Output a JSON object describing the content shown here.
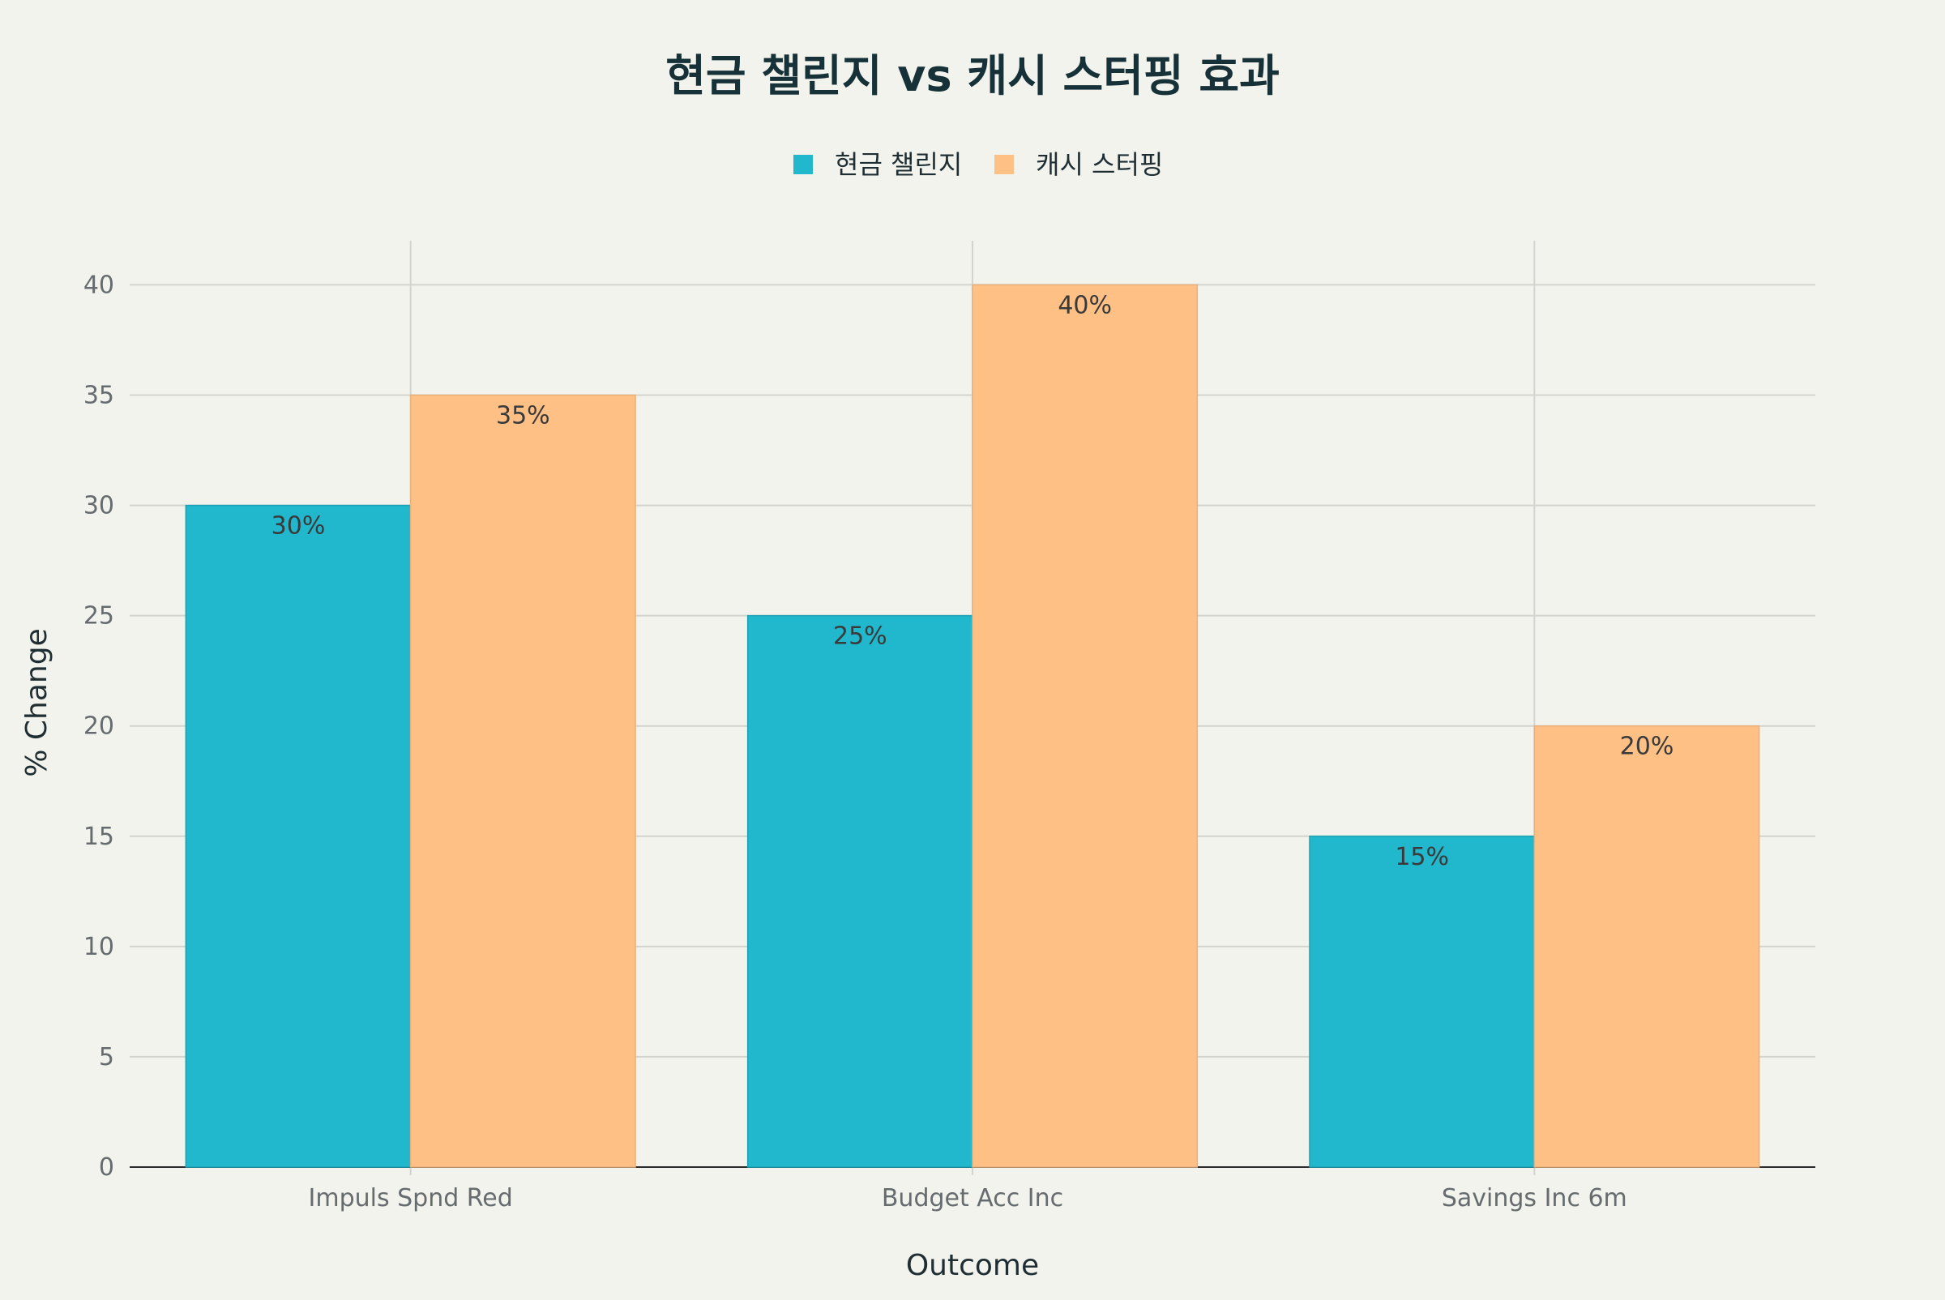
{
  "chart_data": {
    "type": "bar",
    "title": "현금 챌린지 vs 캐시 스터핑 효과",
    "xlabel": "Outcome",
    "ylabel": "% Change",
    "categories": [
      "Impuls Spnd Red",
      "Budget Acc Inc",
      "Savings Inc 6m"
    ],
    "series": [
      {
        "name": "현금 챌린지",
        "values": [
          30,
          25,
          15
        ],
        "labels": [
          "30%",
          "25%",
          "15%"
        ],
        "color": "#21b7cc"
      },
      {
        "name": "캐시 스터핑",
        "values": [
          35,
          40,
          20
        ],
        "labels": [
          "35%",
          "40%",
          "20%"
        ],
        "color": "#ffc085"
      }
    ],
    "ylim": [
      0,
      42
    ],
    "yticks": [
      0,
      5,
      10,
      15,
      20,
      25,
      30,
      35,
      40
    ],
    "grid": true,
    "legend_position": "top-center"
  }
}
